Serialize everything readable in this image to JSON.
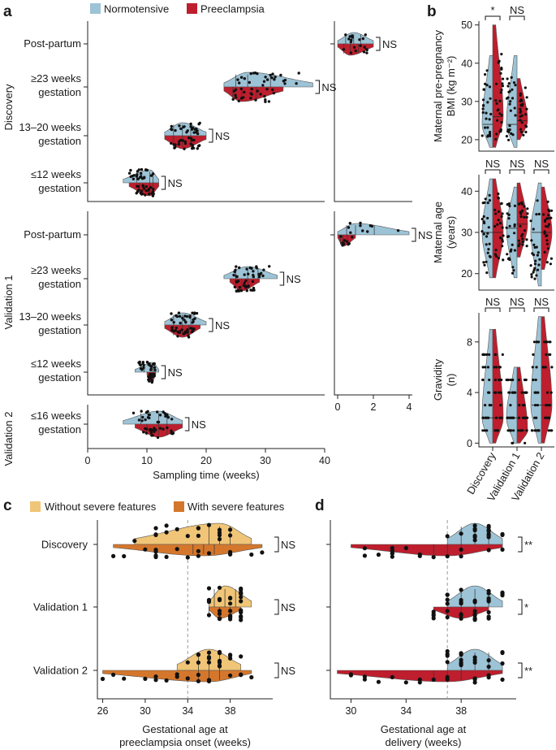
{
  "colors": {
    "normotensive": "#9dc3d6",
    "preeclampsia": "#be1e2d",
    "without_severe": "#f0c577",
    "with_severe": "#d4772c",
    "point": "#111111",
    "dashed": "#9a9a9a"
  },
  "panels": {
    "a": "a",
    "b": "b",
    "c": "c",
    "d": "d"
  },
  "legend_ab": {
    "normotensive": "Normotensive",
    "preeclampsia": "Preeclampsia"
  },
  "legend_c": {
    "without": "Without severe features",
    "with": "With severe features"
  },
  "cohorts": {
    "discovery": "Discovery",
    "validation1": "Validation 1",
    "validation2": "Validation 2"
  },
  "chart_data": [
    {
      "id": "a",
      "type": "violin",
      "xlabel": "Sampling time (weeks)",
      "xlim": [
        0,
        40
      ],
      "xticks": [
        "0",
        "10",
        "20",
        "30",
        "40"
      ],
      "xlim_postpartum": [
        0,
        4
      ],
      "xticks_postpartum": [
        "0",
        "2",
        "4"
      ],
      "groups": [
        {
          "cohort": "Discovery",
          "label_lines": [
            "Post-partum"
          ],
          "series": {
            "Normotensive": {
              "median": 0.9,
              "range": [
                0,
                2
              ]
            },
            "Preeclampsia": {
              "median": 0.7,
              "range": [
                0,
                2
              ]
            }
          },
          "annotation": "NS",
          "panel": "postpartum"
        },
        {
          "cohort": "Discovery",
          "label_lines": [
            "≥23 weeks",
            "gestation"
          ],
          "series": {
            "Normotensive": {
              "median": 27,
              "range": [
                23,
                38
              ]
            },
            "Preeclampsia": {
              "median": 26,
              "range": [
                23,
                33
              ]
            }
          },
          "annotation": "NS"
        },
        {
          "cohort": "Discovery",
          "label_lines": [
            "13–20 weeks",
            "gestation"
          ],
          "series": {
            "Normotensive": {
              "median": 16,
              "range": [
                13,
                20
              ]
            },
            "Preeclampsia": {
              "median": 16,
              "range": [
                13,
                20
              ]
            }
          },
          "annotation": "NS"
        },
        {
          "cohort": "Discovery",
          "label_lines": [
            "≤12 weeks",
            "gestation"
          ],
          "series": {
            "Normotensive": {
              "median": 10.5,
              "range": [
                6,
                12
              ]
            },
            "Preeclampsia": {
              "median": 10.5,
              "range": [
                7,
                12
              ]
            }
          },
          "annotation": "NS"
        },
        {
          "cohort": "Validation 1",
          "label_lines": [
            "Post-partum"
          ],
          "series": {
            "Normotensive": {
              "median": 1.0,
              "range": [
                0,
                4
              ]
            },
            "Preeclampsia": {
              "median": 0.3,
              "range": [
                0,
                1
              ]
            }
          },
          "annotation": "NS",
          "panel": "postpartum"
        },
        {
          "cohort": "Validation 1",
          "label_lines": [
            "≥23 weeks",
            "gestation"
          ],
          "series": {
            "Normotensive": {
              "median": 27,
              "range": [
                23,
                32
              ]
            },
            "Preeclampsia": {
              "median": 26,
              "range": [
                24,
                29
              ]
            }
          },
          "annotation": "NS"
        },
        {
          "cohort": "Validation 1",
          "label_lines": [
            "13–20 weeks",
            "gestation"
          ],
          "series": {
            "Normotensive": {
              "median": 16,
              "range": [
                13,
                20
              ]
            },
            "Preeclampsia": {
              "median": 16,
              "range": [
                13,
                19
              ]
            }
          },
          "annotation": "NS"
        },
        {
          "cohort": "Validation 1",
          "label_lines": [
            "≤12 weeks",
            "gestation"
          ],
          "series": {
            "Normotensive": {
              "median": 11,
              "range": [
                8,
                12
              ]
            },
            "Preeclampsia": {
              "median": 10.8,
              "range": [
                10,
                11.5
              ]
            }
          },
          "annotation": "NS"
        },
        {
          "cohort": "Validation 2",
          "label_lines": [
            "≤16 weeks",
            "gestation"
          ],
          "series": {
            "Normotensive": {
              "median": 12,
              "range": [
                6,
                16
              ]
            },
            "Preeclampsia": {
              "median": 12,
              "range": [
                8,
                16
              ]
            }
          },
          "annotation": "NS"
        }
      ]
    },
    {
      "id": "b",
      "type": "violin",
      "categories": [
        "Discovery",
        "Validation 1",
        "Validation 2"
      ],
      "series_names": [
        "Normotensive",
        "Preeclampsia"
      ],
      "subplots": [
        {
          "ylabel_lines": [
            "Maternal pre-pregnancy",
            "BMI (kg m⁻²)"
          ],
          "ylim": [
            17,
            51
          ],
          "yticks": [
            "20",
            "30",
            "40",
            "50"
          ],
          "medians": {
            "Discovery": [
              24,
              26
            ],
            "Validation 1": [
              24,
              25
            ]
          },
          "ranges": {
            "Discovery": [
              [
                18,
                42
              ],
              [
                18,
                50
              ]
            ],
            "Validation 1": [
              [
                18,
                42
              ],
              [
                20,
                36
              ]
            ]
          },
          "annotations": [
            "*",
            "NS"
          ]
        },
        {
          "ylabel_lines": [
            "Maternal age",
            "(years)"
          ],
          "ylim": [
            16,
            44
          ],
          "yticks": [
            "20",
            "30",
            "40"
          ],
          "medians": {
            "Discovery": [
              30,
              30
            ],
            "Validation 1": [
              31,
              32
            ],
            "Validation 2": [
              30,
              30
            ]
          },
          "ranges": {
            "Discovery": [
              [
                19,
                43
              ],
              [
                19,
                43
              ]
            ],
            "Validation 1": [
              [
                19,
                41
              ],
              [
                24,
                42
              ]
            ],
            "Validation 2": [
              [
                17,
                42
              ],
              [
                21,
                41
              ]
            ]
          },
          "annotations": [
            "NS",
            "NS",
            "NS"
          ]
        },
        {
          "ylabel_lines": [
            "Gravidity",
            "(n)"
          ],
          "ylim": [
            -0.3,
            10.3
          ],
          "yticks": [
            "0",
            "4",
            "8"
          ],
          "medians": {
            "Discovery": [
              2,
              2
            ],
            "Validation 1": [
              2,
              1
            ],
            "Validation 2": [
              3,
              3
            ]
          },
          "ranges": {
            "Discovery": [
              [
                0,
                9
              ],
              [
                0,
                9
              ]
            ],
            "Validation 1": [
              [
                0,
                6
              ],
              [
                0,
                6
              ]
            ],
            "Validation 2": [
              [
                0,
                10
              ],
              [
                0,
                10
              ]
            ]
          },
          "annotations": [
            "NS",
            "NS",
            "NS"
          ]
        }
      ]
    },
    {
      "id": "c",
      "type": "violin",
      "xlabel_lines": [
        "Gestational age at",
        "preeclampsia onset (weeks)"
      ],
      "xlim": [
        25.5,
        42
      ],
      "xticks": [
        "26",
        "30",
        "34",
        "38"
      ],
      "reference_line": 34,
      "categories": [
        "Discovery",
        "Validation 1",
        "Validation 2"
      ],
      "series_names": [
        "Without severe features",
        "With severe features"
      ],
      "ranges": {
        "Discovery": [
          [
            29,
            40
          ],
          [
            27,
            41
          ]
        ],
        "Validation 1": [
          [
            36,
            40
          ],
          [
            36,
            39
          ]
        ],
        "Validation 2": [
          [
            33,
            39
          ],
          [
            26,
            40
          ]
        ]
      },
      "medians": {
        "Discovery": [
          37,
          35.5
        ],
        "Validation 1": [
          37.5,
          37
        ],
        "Validation 2": [
          36,
          36
        ]
      },
      "annotations": [
        "NS",
        "NS",
        "NS"
      ]
    },
    {
      "id": "d",
      "type": "violin",
      "xlabel_lines": [
        "Gestational age at",
        "delivery (weeks)"
      ],
      "xlim": [
        28.5,
        42
      ],
      "xticks": [
        "30",
        "34",
        "38"
      ],
      "reference_line": 37,
      "categories": [
        "Discovery",
        "Validation 1",
        "Validation 2"
      ],
      "series_names": [
        "Normotensive",
        "Preeclampsia"
      ],
      "ranges": {
        "Discovery": [
          [
            37,
            41
          ],
          [
            30,
            41
          ]
        ],
        "Validation 1": [
          [
            37,
            41
          ],
          [
            36,
            40
          ]
        ],
        "Validation 2": [
          [
            37,
            41
          ],
          [
            29,
            41
          ]
        ]
      },
      "medians": {
        "Discovery": [
          39,
          37
        ],
        "Validation 1": [
          39,
          38
        ],
        "Validation 2": [
          39,
          37
        ]
      },
      "annotations": [
        "**",
        "*",
        "**"
      ]
    }
  ]
}
